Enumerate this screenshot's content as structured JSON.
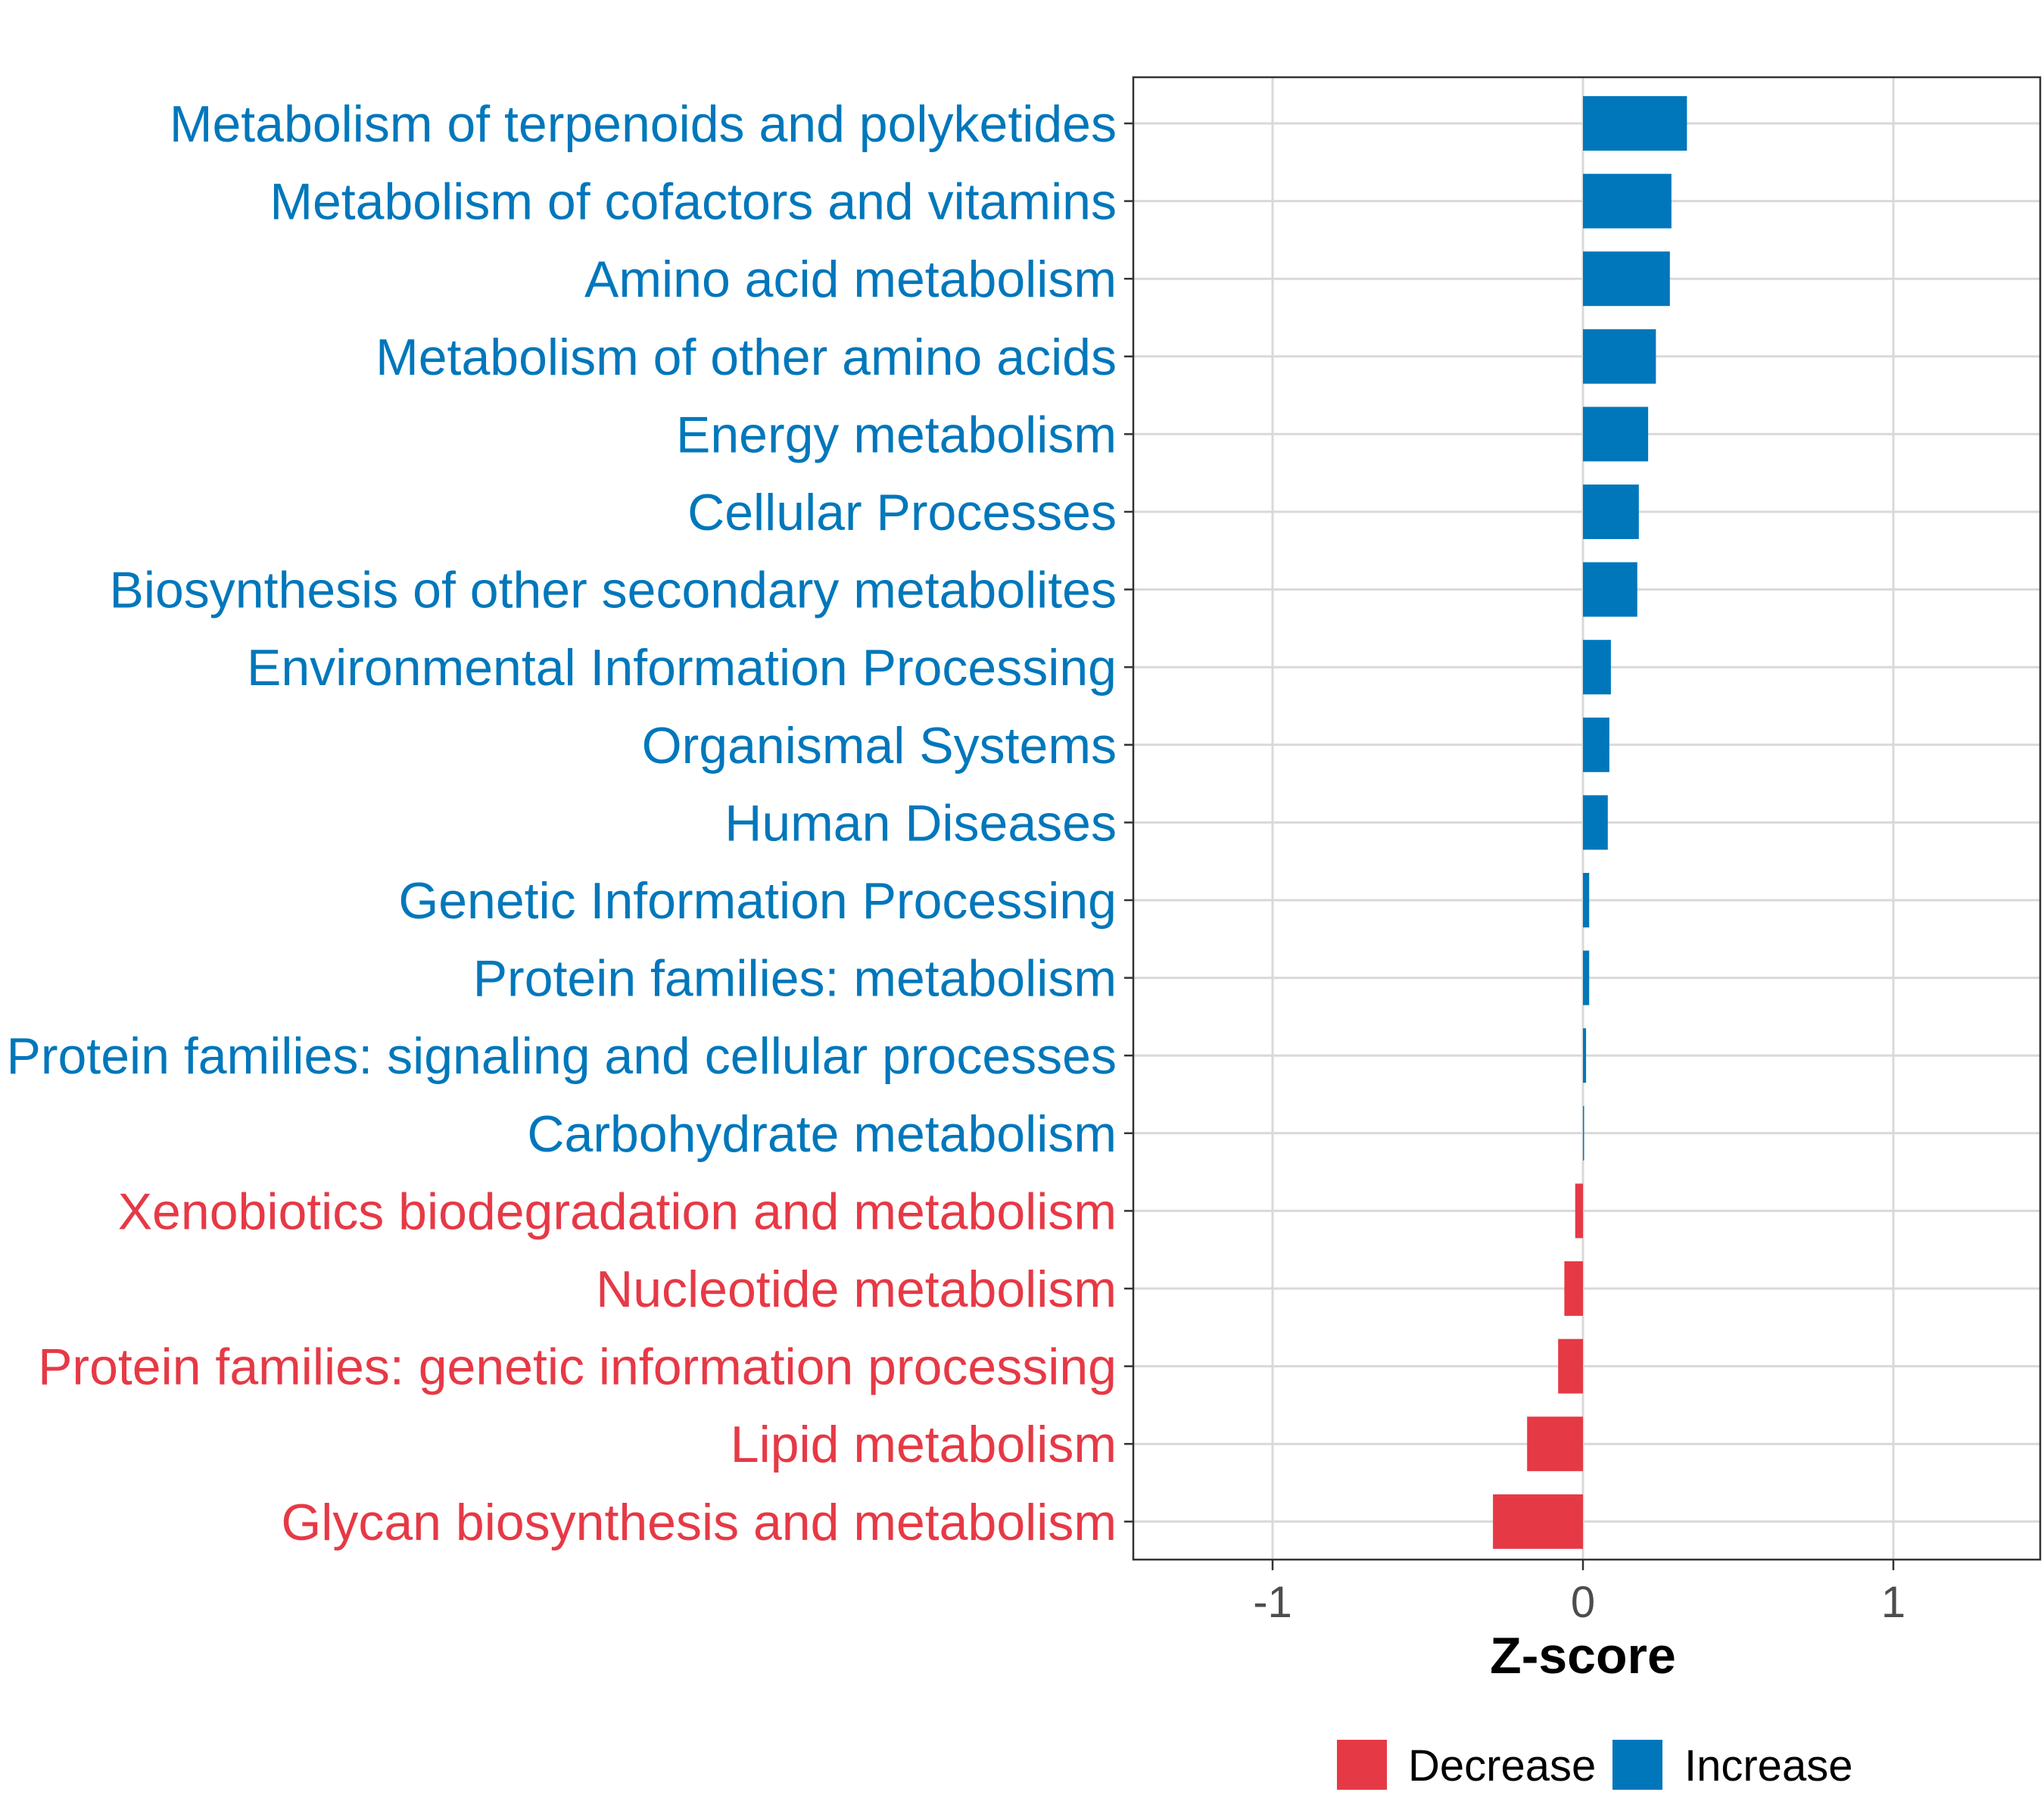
{
  "chart_data": {
    "type": "bar",
    "orientation": "horizontal",
    "title": "",
    "xlabel": "Z-score",
    "ylabel": "",
    "xlim": [
      -1.45,
      1.45
    ],
    "xticks": [
      -1,
      0,
      1
    ],
    "xtick_labels": [
      "-1",
      "0",
      "1"
    ],
    "grid": true,
    "categories": [
      "Metabolism of terpenoids and polyketides",
      "Metabolism of cofactors and vitamins",
      "Amino acid metabolism",
      "Metabolism of other amino acids",
      "Energy metabolism",
      "Cellular Processes",
      "Biosynthesis of other secondary metabolites",
      "Environmental Information Processing",
      "Organismal Systems",
      "Human Diseases",
      "Genetic Information Processing",
      "Protein families: metabolism",
      "Protein families: signaling and cellular processes",
      "Carbohydrate metabolism",
      "Xenobiotics biodegradation and metabolism",
      "Nucleotide metabolism",
      "Protein families: genetic information processing",
      "Lipid metabolism",
      "Glycan biosynthesis and metabolism"
    ],
    "values": [
      0.335,
      0.285,
      0.28,
      0.235,
      0.21,
      0.18,
      0.175,
      0.09,
      0.085,
      0.08,
      0.02,
      0.02,
      0.01,
      0.002,
      -0.025,
      -0.06,
      -0.08,
      -0.18,
      -0.29
    ],
    "legend": {
      "position": "bottom",
      "items": [
        {
          "name": "Decrease",
          "color": "#e63946"
        },
        {
          "name": "Increase",
          "color": "#0077bb"
        }
      ]
    },
    "colors": {
      "decrease": "#e63946",
      "increase": "#0077bb"
    }
  }
}
